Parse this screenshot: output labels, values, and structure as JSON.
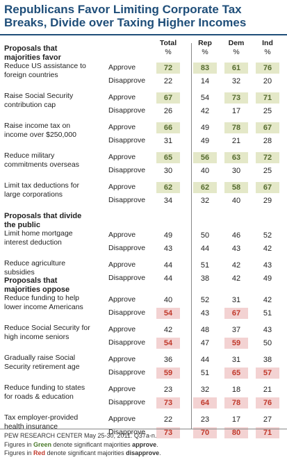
{
  "title_line1": "Republicans Favor Limiting Corporate Tax",
  "title_line2": "Breaks, Divide over Taxing Higher Incomes",
  "headers": {
    "total": "Total",
    "rep": "Rep",
    "dem": "Dem",
    "ind": "Ind",
    "pct": "%"
  },
  "chart_data": {
    "type": "table",
    "columns": [
      "Total",
      "Rep",
      "Dem",
      "Ind"
    ],
    "sections": [
      {
        "title_lines": [
          "Proposals that",
          "majorities favor"
        ],
        "items": [
          {
            "lines": [
              "Reduce US assistance to",
              "foreign countries"
            ],
            "approve": [
              72,
              83,
              61,
              76
            ],
            "disapprove": [
              22,
              14,
              32,
              20
            ],
            "approve_sig": [
              true,
              true,
              true,
              true
            ],
            "disapprove_sig": [
              false,
              false,
              false,
              false
            ]
          },
          {
            "lines": [
              "Raise Social Security",
              "contribution cap"
            ],
            "approve": [
              67,
              54,
              73,
              71
            ],
            "disapprove": [
              26,
              42,
              17,
              25
            ],
            "approve_sig": [
              true,
              false,
              true,
              true
            ],
            "disapprove_sig": [
              false,
              false,
              false,
              false
            ]
          },
          {
            "lines": [
              "Raise income tax on",
              "income over $250,000"
            ],
            "approve": [
              66,
              49,
              78,
              67
            ],
            "disapprove": [
              31,
              49,
              21,
              28
            ],
            "approve_sig": [
              true,
              false,
              true,
              true
            ],
            "disapprove_sig": [
              false,
              false,
              false,
              false
            ]
          },
          {
            "lines": [
              "Reduce military",
              "commitments overseas"
            ],
            "approve": [
              65,
              56,
              63,
              72
            ],
            "disapprove": [
              30,
              40,
              30,
              25
            ],
            "approve_sig": [
              true,
              true,
              true,
              true
            ],
            "disapprove_sig": [
              false,
              false,
              false,
              false
            ]
          },
          {
            "lines": [
              "Limit tax deductions for",
              "large corporations"
            ],
            "approve": [
              62,
              62,
              58,
              67
            ],
            "disapprove": [
              34,
              32,
              40,
              29
            ],
            "approve_sig": [
              true,
              true,
              true,
              true
            ],
            "disapprove_sig": [
              false,
              false,
              false,
              false
            ]
          }
        ]
      },
      {
        "title_lines": [
          "Proposals that divide",
          "the public"
        ],
        "items": [
          {
            "lines": [
              "Limit home mortgage",
              "interest deduction"
            ],
            "approve": [
              49,
              50,
              46,
              52
            ],
            "disapprove": [
              43,
              44,
              43,
              42
            ],
            "approve_sig": [
              false,
              false,
              false,
              false
            ],
            "disapprove_sig": [
              false,
              false,
              false,
              false
            ]
          },
          {
            "lines": [
              "Reduce agriculture",
              "subsidies"
            ],
            "approve": [
              44,
              51,
              42,
              43
            ],
            "disapprove": [
              44,
              38,
              42,
              49
            ],
            "approve_sig": [
              false,
              false,
              false,
              false
            ],
            "disapprove_sig": [
              false,
              false,
              false,
              false
            ]
          }
        ]
      },
      {
        "title_lines": [
          "Proposals that",
          "majorities oppose"
        ],
        "items": [
          {
            "lines": [
              "Reduce funding to help",
              "lower income Americans"
            ],
            "approve": [
              40,
              52,
              31,
              42
            ],
            "disapprove": [
              54,
              43,
              67,
              51
            ],
            "approve_sig": [
              false,
              false,
              false,
              false
            ],
            "disapprove_sig": [
              true,
              false,
              true,
              false
            ]
          },
          {
            "lines": [
              "Reduce Social Security for",
              "high income seniors"
            ],
            "approve": [
              42,
              48,
              37,
              43
            ],
            "disapprove": [
              54,
              47,
              59,
              50
            ],
            "approve_sig": [
              false,
              false,
              false,
              false
            ],
            "disapprove_sig": [
              true,
              false,
              true,
              false
            ]
          },
          {
            "lines": [
              "Gradually raise Social",
              "Security retirement age"
            ],
            "approve": [
              36,
              44,
              31,
              38
            ],
            "disapprove": [
              59,
              51,
              65,
              57
            ],
            "approve_sig": [
              false,
              false,
              false,
              false
            ],
            "disapprove_sig": [
              true,
              false,
              true,
              true
            ]
          },
          {
            "lines": [
              "Reduce funding to states",
              "for roads & education"
            ],
            "approve": [
              23,
              32,
              18,
              21
            ],
            "disapprove": [
              73,
              64,
              78,
              76
            ],
            "approve_sig": [
              false,
              false,
              false,
              false
            ],
            "disapprove_sig": [
              true,
              true,
              true,
              true
            ]
          },
          {
            "lines": [
              "Tax employer-provided",
              "health insurance"
            ],
            "approve": [
              22,
              23,
              17,
              27
            ],
            "disapprove": [
              73,
              70,
              80,
              71
            ],
            "approve_sig": [
              false,
              false,
              false,
              false
            ],
            "disapprove_sig": [
              true,
              true,
              true,
              true
            ]
          }
        ]
      }
    ],
    "row_labels": {
      "approve": "Approve",
      "disapprove": "Disapprove"
    },
    "highlight_colors": {
      "approve": "#e4e8c8",
      "disapprove": "#f3d2d2"
    }
  },
  "footer": {
    "source": "PEW RESEARCH CENTER May 25-30, 2011. Q37a-n.",
    "green_prefix": "Figures in ",
    "green_word": "Green",
    "green_suffix": " denote significant majorities ",
    "green_bold": "approve",
    "green_end": ".",
    "red_prefix": "Figures in ",
    "red_word": "Red",
    "red_suffix": " denote significant majorities ",
    "red_bold": "disapprove",
    "red_end": "."
  }
}
